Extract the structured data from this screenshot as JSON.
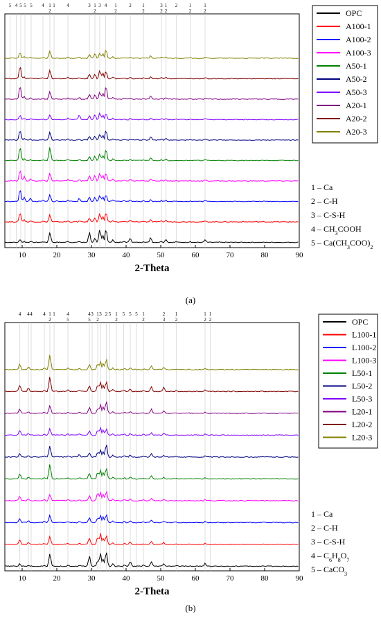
{
  "charts": [
    {
      "panel_label": "(a)",
      "xlabel": "2-Theta",
      "xlim": [
        5,
        90
      ],
      "xticks": [
        "10",
        "20",
        "30",
        "40",
        "50",
        "60",
        "70",
        "80",
        "90"
      ],
      "peak_markers": [
        {
          "x": 6.5,
          "label": "5"
        },
        {
          "x": 8.3,
          "label": "4"
        },
        {
          "x": 9.6,
          "label": "5"
        },
        {
          "x": 10.8,
          "label": "5"
        },
        {
          "x": 12.6,
          "label": "5"
        },
        {
          "x": 16.0,
          "label": "4"
        },
        {
          "x": 18.0,
          "label": "1\n2"
        },
        {
          "x": 19.2,
          "label": "1"
        },
        {
          "x": 23.2,
          "label": "4"
        },
        {
          "x": 29.4,
          "label": "3"
        },
        {
          "x": 31.0,
          "label": "1\n2"
        },
        {
          "x": 32.4,
          "label": "3"
        },
        {
          "x": 34.1,
          "label": "4"
        },
        {
          "x": 37.0,
          "label": "1\n2"
        },
        {
          "x": 41.2,
          "label": "2"
        },
        {
          "x": 45.0,
          "label": "1\n2"
        },
        {
          "x": 50.2,
          "label": "3\n2"
        },
        {
          "x": 51.5,
          "label": "1\n2"
        },
        {
          "x": 54.5,
          "label": "2"
        },
        {
          "x": 58.5,
          "label": "1\n2"
        },
        {
          "x": 62.8,
          "label": "1\n2"
        }
      ],
      "legend": [
        {
          "name": "OPC",
          "color": "#000000"
        },
        {
          "name": "A100-1",
          "color": "#ff0000"
        },
        {
          "name": "A100-2",
          "color": "#0000ff"
        },
        {
          "name": "A100-3",
          "color": "#ff00ff"
        },
        {
          "name": "A50-1",
          "color": "#008000"
        },
        {
          "name": "A50-2",
          "color": "#000080"
        },
        {
          "name": "A50-3",
          "color": "#8000ff"
        },
        {
          "name": "A20-1",
          "color": "#800080"
        },
        {
          "name": "A20-2",
          "color": "#800000"
        },
        {
          "name": "A20-3",
          "color": "#808000"
        }
      ],
      "phases": [
        {
          "num": "1",
          "name": "Ca",
          "sub": ""
        },
        {
          "num": "2",
          "name": "C-H",
          "sub": ""
        },
        {
          "num": "3",
          "name": "C-S-H",
          "sub": ""
        },
        {
          "num": "4",
          "name": "CH",
          "sub": "3",
          "tail": "COOH"
        },
        {
          "num": "5",
          "name": "Ca(CH",
          "sub": "3",
          "tail": "COO)",
          "sub2": "2"
        }
      ],
      "chart_data": {
        "type": "line",
        "x": [
          5,
          9.4,
          10.6,
          12.4,
          16.0,
          18.0,
          20.0,
          23.2,
          26.5,
          29.4,
          31.0,
          32.4,
          33.3,
          34.2,
          36.2,
          39.5,
          41.2,
          45.0,
          47.1,
          50.2,
          51.5,
          54.5,
          58.5,
          62.8,
          67.0,
          90
        ],
        "series": [
          {
            "name": "OPC",
            "values": [
              0,
              0.25,
              0.1,
              0.12,
              0.08,
              0.75,
              0.05,
              0.12,
              0.1,
              0.75,
              0.3,
              0.95,
              0.55,
              1.0,
              0.2,
              0.1,
              0.35,
              0.1,
              0.38,
              0.12,
              0.25,
              0.08,
              0.1,
              0.22,
              0.04,
              0
            ]
          },
          {
            "name": "A100-1",
            "values": [
              0,
              0.7,
              0.2,
              0.1,
              0.08,
              0.55,
              0.05,
              0.1,
              0.1,
              0.3,
              0.35,
              0.65,
              0.4,
              0.7,
              0.12,
              0.08,
              0.15,
              0.08,
              0.2,
              0.1,
              0.15,
              0.05,
              0.06,
              0.1,
              0.03,
              0
            ]
          },
          {
            "name": "A100-2",
            "values": [
              0,
              0.9,
              0.35,
              0.25,
              0.12,
              0.5,
              0.08,
              0.15,
              0.25,
              0.35,
              0.35,
              0.45,
              0.35,
              0.5,
              0.15,
              0.1,
              0.15,
              0.08,
              0.18,
              0.1,
              0.12,
              0.05,
              0.06,
              0.1,
              0.03,
              0
            ]
          },
          {
            "name": "A100-3",
            "values": [
              0,
              0.85,
              0.35,
              0.2,
              0.1,
              0.6,
              0.08,
              0.15,
              0.15,
              0.4,
              0.45,
              0.6,
              0.45,
              0.6,
              0.15,
              0.1,
              0.15,
              0.08,
              0.18,
              0.1,
              0.12,
              0.05,
              0.06,
              0.1,
              0.03,
              0
            ]
          },
          {
            "name": "A50-1",
            "values": [
              0,
              1.0,
              0.15,
              0.1,
              0.08,
              1.0,
              0.05,
              0.12,
              0.1,
              0.35,
              0.35,
              0.5,
              0.4,
              0.85,
              0.15,
              0.08,
              0.12,
              0.08,
              0.25,
              0.1,
              0.12,
              0.05,
              0.06,
              0.1,
              0.03,
              0
            ]
          },
          {
            "name": "A50-2",
            "values": [
              0,
              0.75,
              0.15,
              0.1,
              0.08,
              0.6,
              0.05,
              0.12,
              0.1,
              0.3,
              0.3,
              0.45,
              0.35,
              0.75,
              0.12,
              0.08,
              0.12,
              0.08,
              0.28,
              0.1,
              0.15,
              0.05,
              0.06,
              0.1,
              0.03,
              0
            ]
          },
          {
            "name": "A50-3",
            "values": [
              0,
              0.35,
              0.12,
              0.1,
              0.08,
              0.35,
              0.05,
              0.12,
              0.35,
              0.3,
              0.4,
              0.5,
              0.35,
              0.45,
              0.12,
              0.08,
              0.12,
              0.08,
              0.15,
              0.1,
              0.12,
              0.05,
              0.06,
              0.1,
              0.03,
              0
            ]
          },
          {
            "name": "A20-1",
            "values": [
              0,
              1.0,
              0.2,
              0.12,
              0.1,
              0.6,
              0.06,
              0.12,
              0.15,
              0.4,
              0.35,
              0.55,
              0.45,
              0.95,
              0.15,
              0.1,
              0.12,
              0.08,
              0.3,
              0.1,
              0.15,
              0.05,
              0.06,
              0.1,
              0.03,
              0
            ]
          },
          {
            "name": "A20-2",
            "values": [
              0,
              0.95,
              0.15,
              0.1,
              0.08,
              0.65,
              0.05,
              0.12,
              0.1,
              0.35,
              0.35,
              0.6,
              0.45,
              0.55,
              0.15,
              0.08,
              0.12,
              0.08,
              0.15,
              0.1,
              0.12,
              0.05,
              0.06,
              0.1,
              0.03,
              0
            ]
          },
          {
            "name": "A20-3",
            "values": [
              0,
              0.45,
              0.15,
              0.1,
              0.08,
              0.55,
              0.05,
              0.12,
              0.1,
              0.3,
              0.35,
              0.4,
              0.35,
              0.65,
              0.12,
              0.08,
              0.12,
              0.08,
              0.2,
              0.1,
              0.12,
              0.05,
              0.06,
              0.1,
              0.03,
              0
            ]
          }
        ]
      }
    },
    {
      "panel_label": "(b)",
      "xlabel": "2-Theta",
      "xlim": [
        5,
        90
      ],
      "xticks": [
        "10",
        "20",
        "30",
        "40",
        "50",
        "60",
        "70",
        "80",
        "90"
      ],
      "peak_markers": [
        {
          "x": 9.3,
          "label": "4"
        },
        {
          "x": 11.8,
          "label": "4"
        },
        {
          "x": 12.6,
          "label": "4"
        },
        {
          "x": 16.4,
          "label": "4"
        },
        {
          "x": 18.0,
          "label": "1\n2"
        },
        {
          "x": 19.2,
          "label": "1"
        },
        {
          "x": 23.2,
          "label": "4\n5"
        },
        {
          "x": 29.4,
          "label": "4\n5"
        },
        {
          "x": 30.2,
          "label": "3"
        },
        {
          "x": 31.8,
          "label": "1\n2"
        },
        {
          "x": 32.6,
          "label": "3"
        },
        {
          "x": 34.3,
          "label": "2"
        },
        {
          "x": 35.3,
          "label": "5"
        },
        {
          "x": 37.2,
          "label": "1\n2"
        },
        {
          "x": 39.3,
          "label": "5"
        },
        {
          "x": 41.2,
          "label": "5"
        },
        {
          "x": 43.0,
          "label": "5"
        },
        {
          "x": 45.0,
          "label": "1\n2"
        },
        {
          "x": 50.9,
          "label": "2\n3"
        },
        {
          "x": 54.5,
          "label": "1\n2"
        },
        {
          "x": 62.8,
          "label": "1\n2"
        },
        {
          "x": 64.3,
          "label": "1\n2"
        }
      ],
      "legend": [
        {
          "name": "OPC",
          "color": "#000000"
        },
        {
          "name": "L100-1",
          "color": "#ff0000"
        },
        {
          "name": "L100-2",
          "color": "#0000ff"
        },
        {
          "name": "L100-3",
          "color": "#ff00ff"
        },
        {
          "name": "L50-1",
          "color": "#008000"
        },
        {
          "name": "L50-2",
          "color": "#000080"
        },
        {
          "name": "L50-3",
          "color": "#8000ff"
        },
        {
          "name": "L20-1",
          "color": "#800080"
        },
        {
          "name": "L20-2",
          "color": "#800000"
        },
        {
          "name": "L20-3",
          "color": "#808000"
        }
      ],
      "phases": [
        {
          "num": "1",
          "name": "Ca",
          "sub": ""
        },
        {
          "num": "2",
          "name": "C-H",
          "sub": ""
        },
        {
          "num": "3",
          "name": "C-S-H",
          "sub": ""
        },
        {
          "num": "4",
          "name": "C",
          "sub": "6",
          "tail": "H",
          "sub2": "8",
          "tail2": "O",
          "sub3": "7"
        },
        {
          "num": "5",
          "name": "CaCO",
          "sub": "3"
        }
      ],
      "chart_data": {
        "type": "line",
        "x": [
          5,
          9.3,
          11.8,
          16.4,
          18.0,
          20.0,
          23.2,
          26.5,
          29.4,
          31.8,
          32.6,
          33.4,
          34.3,
          36.2,
          39.5,
          41.2,
          45.0,
          47.3,
          50.9,
          54.5,
          58.0,
          62.8,
          67.0,
          90
        ],
        "series": [
          {
            "name": "OPC",
            "values": [
              0,
              0.2,
              0.1,
              0.1,
              0.85,
              0.05,
              0.12,
              0.1,
              0.7,
              0.4,
              0.9,
              0.5,
              1.0,
              0.2,
              0.1,
              0.35,
              0.1,
              0.3,
              0.2,
              0.08,
              0.05,
              0.22,
              0.04,
              0
            ]
          },
          {
            "name": "L100-1",
            "values": [
              0,
              0.35,
              0.15,
              0.1,
              0.55,
              0.06,
              0.1,
              0.1,
              0.45,
              0.5,
              0.75,
              0.45,
              0.6,
              0.15,
              0.1,
              0.2,
              0.08,
              0.22,
              0.15,
              0.06,
              0.05,
              0.1,
              0.03,
              0
            ]
          },
          {
            "name": "L100-2",
            "values": [
              0,
              0.3,
              0.15,
              0.1,
              0.5,
              0.05,
              0.1,
              0.1,
              0.35,
              0.35,
              0.5,
              0.4,
              0.55,
              0.12,
              0.1,
              0.15,
              0.08,
              0.2,
              0.12,
              0.06,
              0.05,
              0.1,
              0.03,
              0
            ]
          },
          {
            "name": "L100-3",
            "values": [
              0,
              0.3,
              0.15,
              0.1,
              0.45,
              0.05,
              0.1,
              0.1,
              0.35,
              0.55,
              0.6,
              0.45,
              0.65,
              0.15,
              0.1,
              0.15,
              0.08,
              0.18,
              0.12,
              0.06,
              0.05,
              0.1,
              0.03,
              0
            ]
          },
          {
            "name": "L50-1",
            "values": [
              0,
              0.35,
              0.15,
              0.1,
              1.0,
              0.05,
              0.12,
              0.1,
              0.4,
              0.45,
              0.6,
              0.45,
              0.75,
              0.15,
              0.1,
              0.15,
              0.08,
              0.25,
              0.12,
              0.06,
              0.05,
              0.1,
              0.03,
              0
            ]
          },
          {
            "name": "L50-2",
            "values": [
              0,
              0.25,
              0.1,
              0.1,
              0.75,
              0.05,
              0.1,
              0.2,
              0.3,
              0.35,
              0.5,
              0.4,
              0.85,
              0.15,
              0.1,
              0.15,
              0.08,
              0.25,
              0.15,
              0.06,
              0.05,
              0.1,
              0.03,
              0
            ]
          },
          {
            "name": "L50-3",
            "values": [
              0,
              0.35,
              0.15,
              0.1,
              0.45,
              0.05,
              0.1,
              0.1,
              0.3,
              0.35,
              0.5,
              0.35,
              0.45,
              0.12,
              0.1,
              0.15,
              0.08,
              0.2,
              0.15,
              0.06,
              0.05,
              0.1,
              0.03,
              0
            ]
          },
          {
            "name": "L20-1",
            "values": [
              0,
              0.3,
              0.15,
              0.1,
              0.55,
              0.05,
              0.1,
              0.1,
              0.45,
              0.35,
              0.6,
              0.45,
              0.85,
              0.15,
              0.1,
              0.15,
              0.08,
              0.3,
              0.2,
              0.06,
              0.05,
              0.1,
              0.03,
              0
            ]
          },
          {
            "name": "L20-2",
            "values": [
              0,
              0.45,
              0.25,
              0.12,
              1.0,
              0.06,
              0.12,
              0.1,
              0.4,
              0.45,
              0.65,
              0.45,
              0.7,
              0.15,
              0.1,
              0.2,
              0.08,
              0.35,
              0.3,
              0.06,
              0.05,
              0.12,
              0.03,
              0
            ]
          },
          {
            "name": "L20-3",
            "values": [
              0,
              0.4,
              0.2,
              0.12,
              1.0,
              0.05,
              0.15,
              0.1,
              0.35,
              0.4,
              0.55,
              0.45,
              0.75,
              0.15,
              0.1,
              0.15,
              0.08,
              0.3,
              0.2,
              0.06,
              0.05,
              0.1,
              0.03,
              0
            ]
          }
        ]
      }
    }
  ]
}
